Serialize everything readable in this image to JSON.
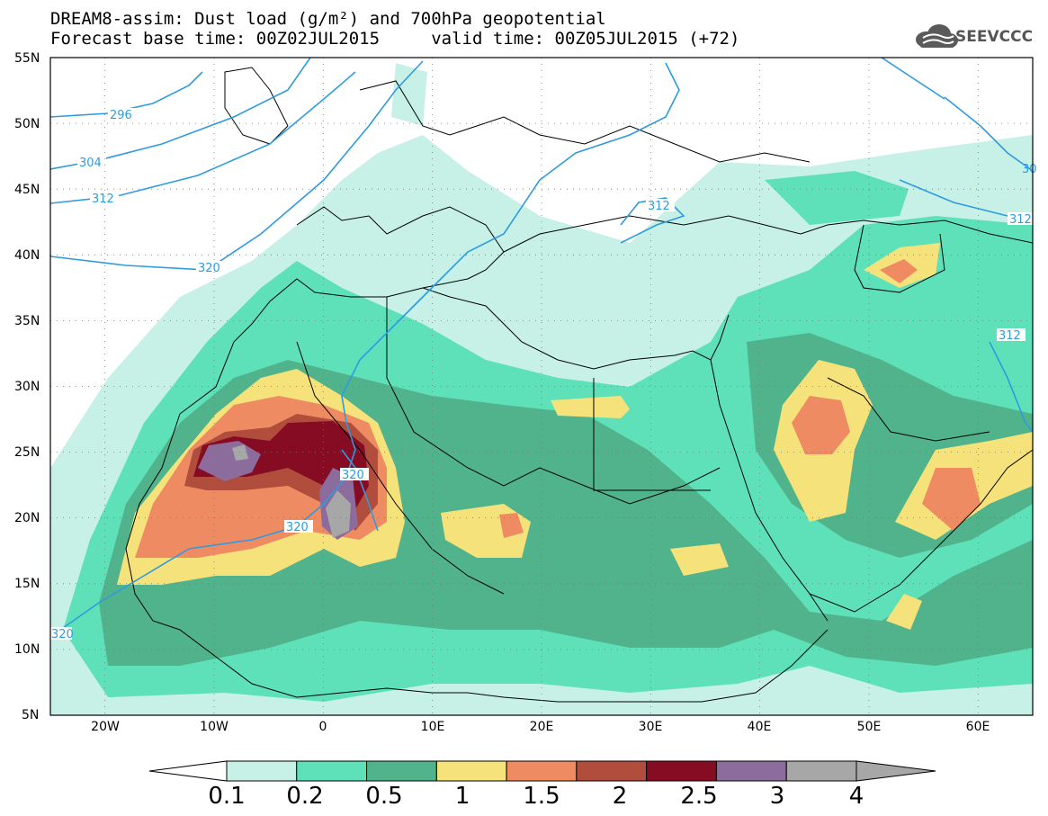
{
  "title": {
    "line1": "DREAM8-assim: Dust load (g/m²) and 700hPa geopotential",
    "line2": "Forecast base time: 00Z02JUL2015     valid time: 00Z05JUL2015 (+72)"
  },
  "logo": {
    "text": "SEEVCCC",
    "icon": "cloud-logo-icon"
  },
  "map": {
    "lon_range": [
      -25,
      65
    ],
    "lat_range": [
      5,
      55
    ],
    "lat_labels": [
      "55N",
      "50N",
      "45N",
      "40N",
      "35N",
      "30N",
      "25N",
      "20N",
      "15N",
      "10N",
      "5N"
    ],
    "lon_labels": [
      "20W",
      "10W",
      "0",
      "10E",
      "20E",
      "30E",
      "40E",
      "50E",
      "60E"
    ],
    "grid": "dotted",
    "contour_labels": [
      "296",
      "304",
      "312",
      "320",
      "312",
      "320",
      "320",
      "312",
      "312",
      "30"
    ]
  },
  "colorbar": {
    "labels": [
      "0.1",
      "0.2",
      "0.5",
      "1",
      "1.5",
      "2",
      "2.5",
      "3",
      "4"
    ],
    "colors": [
      "#c7f0e7",
      "#5ee1b9",
      "#50b38c",
      "#f6e27a",
      "#ee8b63",
      "#b14d3d",
      "#860c23",
      "#8c6b9d",
      "#a7a7a7"
    ]
  }
}
